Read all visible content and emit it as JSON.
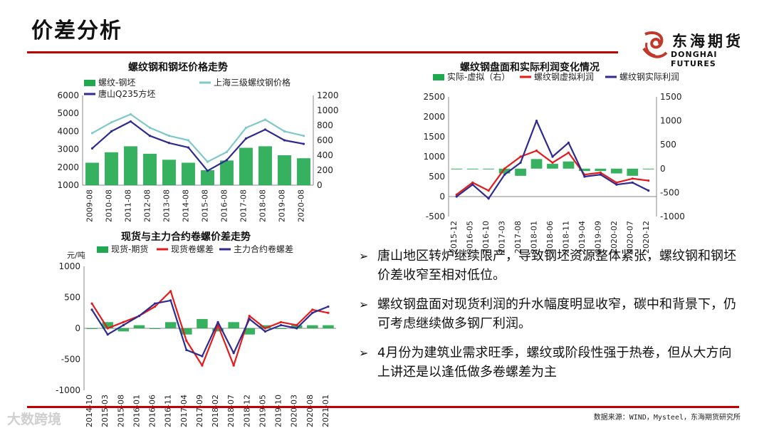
{
  "page": {
    "title": "价差分析",
    "logo": {
      "cn": "东海期货",
      "en": "DONGHAI FUTURES"
    },
    "source": "数据来源：WIND，Mysteel，东海期货研究所",
    "watermark": "大数跨境"
  },
  "bullets": [
    "唐山地区转炉继续限产，导致钢坯资源整体紧张，螺纹钢和钢坯价差收窄至相对低位。",
    "螺纹钢盘面对现货利润的升水幅度明显收窄，碳中和背景下，仍可考虑继续做多钢厂利润。",
    "4月份为建筑业需求旺季，螺纹或阶段性强于热卷，但从大方向上讲还是以逢低做多卷螺差为主"
  ],
  "colors": {
    "green": "#1fa84f",
    "red": "#e31b1b",
    "navy": "#2e2a8f",
    "teal": "#7ec8c8",
    "rule": "#c00000"
  },
  "chart_data": [
    {
      "id": "c1",
      "type": "line",
      "title": "螺纹钢和钢坯价格走势",
      "x": [
        "2009-08",
        "2010-08",
        "2011-08",
        "2012-08",
        "2013-08",
        "2014-08",
        "2015-08",
        "2016-08",
        "2017-08",
        "2018-08",
        "2019-08",
        "2020-08"
      ],
      "ylim": [
        1000,
        6000
      ],
      "yticks": [
        1000,
        2000,
        3000,
        4000,
        5000,
        6000
      ],
      "y2lim": [
        0,
        1200
      ],
      "y2ticks": [
        0,
        200,
        400,
        600,
        800,
        1000,
        1200
      ],
      "series": [
        {
          "name": "螺纹-钢坯",
          "type": "bar",
          "axis": "right",
          "color": "#1fa84f",
          "values": [
            300,
            440,
            520,
            420,
            340,
            300,
            200,
            330,
            500,
            520,
            400,
            360
          ]
        },
        {
          "name": "上海三级螺纹钢价格",
          "type": "line",
          "axis": "left",
          "color": "#7ec8c8",
          "values": [
            3900,
            4500,
            4950,
            4200,
            3750,
            3500,
            2300,
            2850,
            4200,
            4650,
            4000,
            3750
          ]
        },
        {
          "name": "唐山Q235方坯",
          "type": "line",
          "axis": "left",
          "color": "#2e2a8f",
          "values": [
            3050,
            4000,
            4550,
            3750,
            3350,
            3100,
            1800,
            2400,
            3600,
            4100,
            3500,
            3300
          ]
        }
      ]
    },
    {
      "id": "c2",
      "type": "line",
      "title": "螺纹钢盘面和实际利润变化情况",
      "x": [
        "2015-12",
        "2016-05",
        "2016-10",
        "2017-03",
        "2017-08",
        "2018-01",
        "2018-06",
        "2018-11",
        "2019-04",
        "2019-09",
        "2020-02",
        "2020-07",
        "2020-12"
      ],
      "ylim": [
        -500,
        2500
      ],
      "yticks": [
        -500,
        0,
        500,
        1000,
        1500,
        2000,
        2500
      ],
      "y2lim": [
        -1000,
        1500
      ],
      "y2ticks": [
        -1000,
        -500,
        0,
        500,
        1000,
        1500
      ],
      "series": [
        {
          "name": "实际-虚拟（右）",
          "type": "bar",
          "axis": "right",
          "color": "#1fa84f",
          "values": [
            0,
            0,
            0,
            -100,
            -150,
            200,
            100,
            150,
            -50,
            -50,
            -100,
            -150,
            0
          ]
        },
        {
          "name": "螺纹钢虚拟利润",
          "type": "line",
          "axis": "left",
          "color": "#e31b1b",
          "values": [
            50,
            350,
            150,
            700,
            1000,
            1150,
            850,
            1100,
            550,
            600,
            350,
            450,
            400
          ]
        },
        {
          "name": "螺纹钢实际利润",
          "type": "line",
          "axis": "left",
          "color": "#2e2a8f",
          "values": [
            0,
            300,
            -50,
            550,
            850,
            1900,
            1000,
            1350,
            500,
            550,
            300,
            350,
            150
          ]
        }
      ]
    },
    {
      "id": "c3",
      "type": "line",
      "title": "现货与主力合约卷螺价差走势",
      "unit": "元/吨",
      "x": [
        "2014-10",
        "2015-03",
        "2015-08",
        "2016-01",
        "2016-06",
        "2016-11",
        "2017-04",
        "2017-09",
        "2018-02",
        "2018-07",
        "2018-12",
        "2019-05",
        "2019-10",
        "2020-03",
        "2020-08",
        "2021-01"
      ],
      "ylim": [
        -1000,
        1000
      ],
      "yticks": [
        -1000,
        -500,
        0,
        500,
        1000
      ],
      "series": [
        {
          "name": "现货-期货",
          "type": "bar",
          "axis": "left",
          "color": "#1fa84f",
          "values": [
            0,
            100,
            -50,
            50,
            0,
            100,
            -100,
            150,
            -50,
            100,
            -100,
            50,
            0,
            50,
            50,
            50
          ]
        },
        {
          "name": "现货卷螺差",
          "type": "line",
          "axis": "left",
          "color": "#e31b1b",
          "values": [
            400,
            0,
            100,
            200,
            350,
            600,
            -200,
            -600,
            50,
            -600,
            200,
            0,
            100,
            50,
            300,
            250
          ]
        },
        {
          "name": "主力合约卷螺差",
          "type": "line",
          "axis": "left",
          "color": "#2e2a8f",
          "values": [
            300,
            -100,
            50,
            200,
            400,
            450,
            -350,
            -450,
            100,
            -400,
            150,
            -50,
            50,
            0,
            250,
            350
          ]
        }
      ]
    }
  ]
}
